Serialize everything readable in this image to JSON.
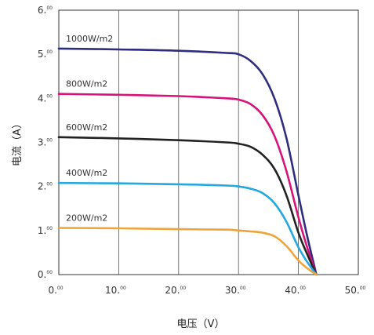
{
  "chart_data": {
    "type": "line",
    "xlabel": "电压（V）",
    "ylabel": "电流（A）",
    "xlim": [
      0,
      50
    ],
    "ylim": [
      0,
      6
    ],
    "x_ticks": [
      0,
      10,
      20,
      30,
      40,
      50
    ],
    "y_ticks": [
      0,
      1,
      2,
      3,
      4,
      5,
      6
    ],
    "x_tick_labels": [
      "0.",
      "10.",
      "20.",
      "30.",
      "40.",
      "50."
    ],
    "y_tick_labels": [
      "0.",
      "1.",
      "2.",
      "3.",
      "4.",
      "5.",
      "6."
    ],
    "tick_decimals": "00",
    "grid": "vertical",
    "series": [
      {
        "name": "1000W/m2",
        "color": "#2e2d7e",
        "points": [
          [
            0,
            5.13
          ],
          [
            10,
            5.11
          ],
          [
            20,
            5.08
          ],
          [
            28,
            5.03
          ],
          [
            30,
            5.0
          ],
          [
            32,
            4.85
          ],
          [
            34,
            4.55
          ],
          [
            36,
            4.0
          ],
          [
            38,
            3.1
          ],
          [
            40,
            1.8
          ],
          [
            41.5,
            0.85
          ],
          [
            43,
            0
          ]
        ]
      },
      {
        "name": "800W/m2",
        "color": "#d7137a",
        "points": [
          [
            0,
            4.1
          ],
          [
            10,
            4.08
          ],
          [
            20,
            4.05
          ],
          [
            28,
            4.0
          ],
          [
            30,
            3.97
          ],
          [
            32,
            3.87
          ],
          [
            34,
            3.62
          ],
          [
            36,
            3.15
          ],
          [
            38,
            2.35
          ],
          [
            40,
            1.3
          ],
          [
            41.5,
            0.6
          ],
          [
            43,
            0
          ]
        ]
      },
      {
        "name": "600W/m2",
        "color": "#222222",
        "points": [
          [
            0,
            3.12
          ],
          [
            10,
            3.09
          ],
          [
            20,
            3.05
          ],
          [
            28,
            3.0
          ],
          [
            30,
            2.97
          ],
          [
            32,
            2.9
          ],
          [
            34,
            2.72
          ],
          [
            36,
            2.4
          ],
          [
            38,
            1.8
          ],
          [
            40,
            0.95
          ],
          [
            41.5,
            0.45
          ],
          [
            43,
            0
          ]
        ]
      },
      {
        "name": "400W/m2",
        "color": "#24a8de",
        "points": [
          [
            0,
            2.08
          ],
          [
            10,
            2.07
          ],
          [
            20,
            2.05
          ],
          [
            28,
            2.02
          ],
          [
            30,
            2.0
          ],
          [
            32,
            1.95
          ],
          [
            34,
            1.85
          ],
          [
            36,
            1.62
          ],
          [
            38,
            1.2
          ],
          [
            40,
            0.62
          ],
          [
            41.5,
            0.28
          ],
          [
            43,
            0
          ]
        ]
      },
      {
        "name": "200W/m2",
        "color": "#eda43a",
        "points": [
          [
            0,
            1.06
          ],
          [
            10,
            1.05
          ],
          [
            20,
            1.03
          ],
          [
            28,
            1.02
          ],
          [
            30,
            1.0
          ],
          [
            32,
            0.98
          ],
          [
            34,
            0.95
          ],
          [
            36,
            0.87
          ],
          [
            38,
            0.65
          ],
          [
            40,
            0.32
          ],
          [
            41.5,
            0.14
          ],
          [
            43,
            0
          ]
        ]
      }
    ]
  }
}
